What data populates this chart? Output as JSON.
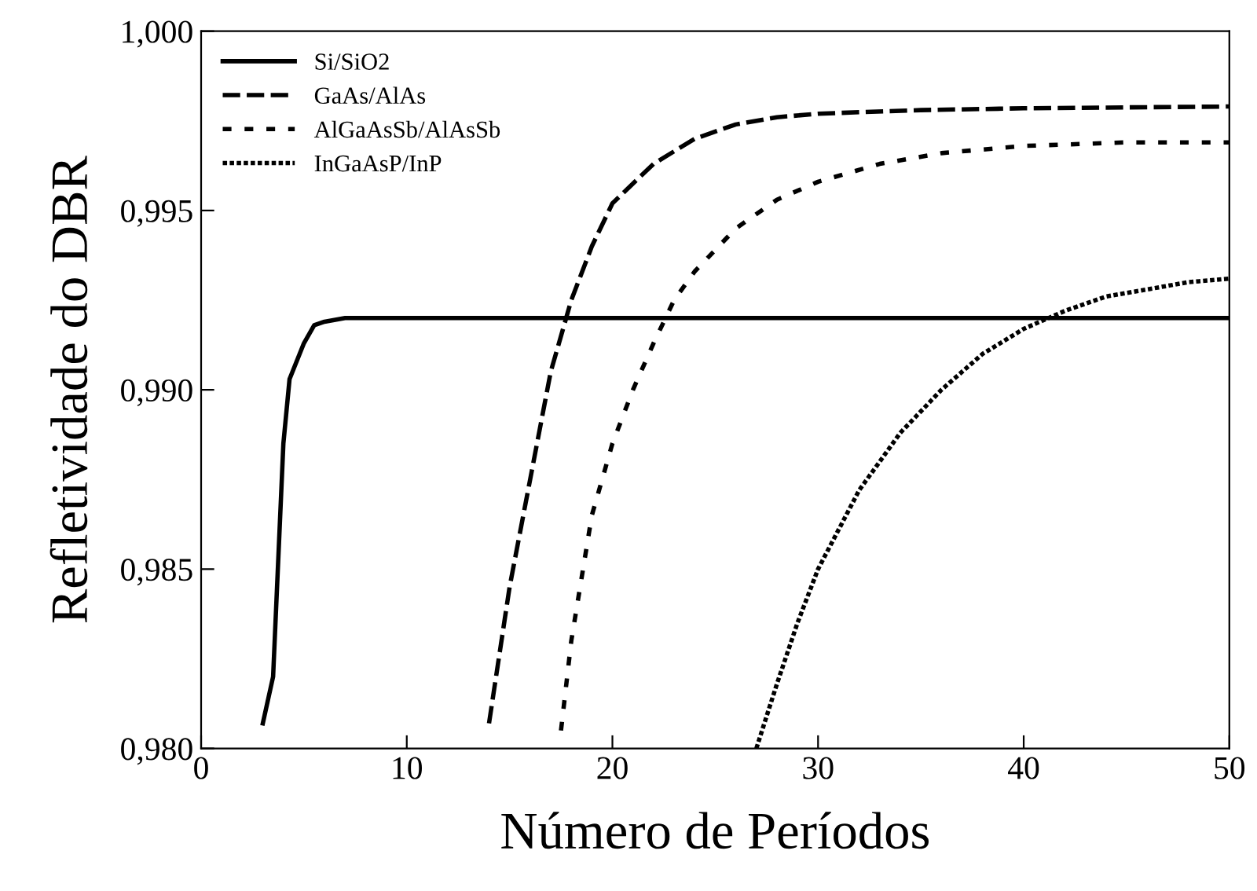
{
  "chart_data": {
    "type": "line",
    "xlabel": "Número de Períodos",
    "ylabel": "Refletividade do DBR",
    "xlim": [
      0,
      50
    ],
    "xticks": [
      0,
      10,
      20,
      30,
      40,
      50
    ],
    "ylim": [
      0.98,
      1.0
    ],
    "yticks": [
      {
        "value": 0.98,
        "label": "0,980"
      },
      {
        "value": 0.985,
        "label": "0,985"
      },
      {
        "value": 0.99,
        "label": "0,990"
      },
      {
        "value": 0.995,
        "label": "0,995"
      },
      {
        "value": 1.0,
        "label": "1,000"
      }
    ],
    "legend": "top left",
    "grid": false,
    "series": [
      {
        "name": "Si/SiO2",
        "color": "#000000",
        "line_style": "solid",
        "x": [
          3,
          3.5,
          4,
          4.3,
          5,
          5.5,
          6,
          7,
          10,
          20,
          30,
          40,
          50
        ],
        "values": [
          0.9807,
          0.982,
          0.9885,
          0.9903,
          0.9913,
          0.9918,
          0.9919,
          0.992,
          0.992,
          0.992,
          0.992,
          0.992,
          0.992
        ]
      },
      {
        "name": "GaAs/AlAs",
        "color": "#000000",
        "line_style": "dashed",
        "x": [
          14,
          15,
          16,
          17,
          18,
          19,
          20,
          22,
          24,
          26,
          28,
          30,
          35,
          40,
          50
        ],
        "values": [
          0.9807,
          0.9845,
          0.9875,
          0.9905,
          0.9925,
          0.994,
          0.9952,
          0.9963,
          0.997,
          0.9974,
          0.9976,
          0.9977,
          0.9978,
          0.99785,
          0.9979
        ]
      },
      {
        "name": "AlGaAsSb/AlAsSb",
        "color": "#000000",
        "line_style": "dashed_sparse",
        "x": [
          17.5,
          18,
          19,
          20,
          21,
          22,
          23,
          24,
          26,
          28,
          30,
          33,
          36,
          40,
          45,
          50
        ],
        "values": [
          0.9805,
          0.983,
          0.9865,
          0.9885,
          0.99,
          0.9913,
          0.9925,
          0.9933,
          0.9945,
          0.9953,
          0.9958,
          0.9963,
          0.9966,
          0.9968,
          0.9969,
          0.9969
        ]
      },
      {
        "name": "InGaAsP/InP",
        "color": "#000000",
        "line_style": "dotted",
        "x": [
          27,
          28,
          29,
          30,
          32,
          34,
          36,
          38,
          40,
          42,
          44,
          46,
          48,
          50
        ],
        "values": [
          0.98,
          0.9818,
          0.9835,
          0.985,
          0.9872,
          0.9888,
          0.99,
          0.991,
          0.9917,
          0.9922,
          0.9926,
          0.9928,
          0.993,
          0.9931
        ]
      }
    ]
  }
}
